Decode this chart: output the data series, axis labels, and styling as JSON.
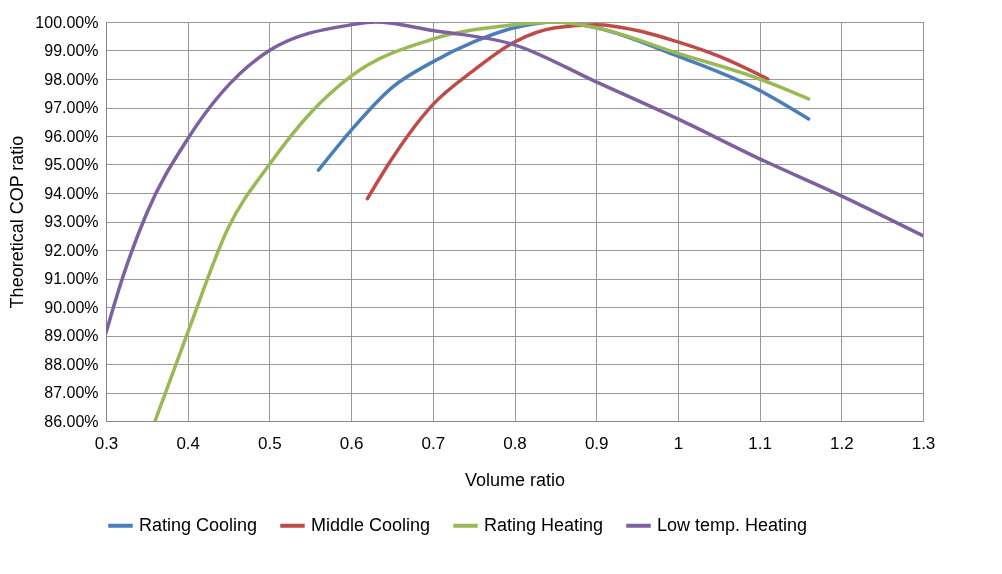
{
  "chart_data": {
    "type": "line",
    "xlabel": "Volume ratio",
    "ylabel": "Theoretical  COP ratio",
    "xlim": [
      0.3,
      1.3
    ],
    "xticks": [
      0.3,
      0.4,
      0.5,
      0.6,
      0.7,
      0.8,
      0.9,
      1,
      1.1,
      1.2,
      1.3
    ],
    "ylim": [
      86,
      100
    ],
    "yticks": [
      {
        "value": 86,
        "label": "86.00%"
      },
      {
        "value": 87,
        "label": "87.00%"
      },
      {
        "value": 88,
        "label": "88.00%"
      },
      {
        "value": 89,
        "label": "89.00%"
      },
      {
        "value": 90,
        "label": "90.00%"
      },
      {
        "value": 91,
        "label": "91.00%"
      },
      {
        "value": 92,
        "label": "92.00%"
      },
      {
        "value": 93,
        "label": "93.00%"
      },
      {
        "value": 94,
        "label": "94.00%"
      },
      {
        "value": 95,
        "label": "95.00%"
      },
      {
        "value": 96,
        "label": "96.00%"
      },
      {
        "value": 97,
        "label": "97.00%"
      },
      {
        "value": 98,
        "label": "98.00%"
      },
      {
        "value": 99,
        "label": "99.00%"
      },
      {
        "value": 100,
        "label": "100.00%"
      }
    ],
    "grid": true,
    "legend": "bottom",
    "marker": "none",
    "line_style": "solid",
    "series": [
      {
        "name": "Rating Cooling",
        "color": "#4a7ebb",
        "x": [
          0.56,
          0.6,
          0.65,
          0.7,
          0.75,
          0.8,
          0.85,
          0.9,
          1.0,
          1.1,
          1.16
        ],
        "values": [
          94.8,
          96.2,
          97.7,
          98.6,
          99.3,
          99.8,
          100,
          99.8,
          98.8,
          97.6,
          96.6
        ]
      },
      {
        "name": "Middle Cooling",
        "color": "#be4b48",
        "x": [
          0.62,
          0.65,
          0.7,
          0.75,
          0.8,
          0.85,
          0.9,
          0.95,
          1.0,
          1.05,
          1.11
        ],
        "values": [
          93.8,
          95.2,
          97.1,
          98.3,
          99.3,
          99.8,
          99.9,
          99.7,
          99.3,
          98.8,
          98.0
        ]
      },
      {
        "name": "Rating Heating",
        "color": "#98b954",
        "x": [
          0.36,
          0.4,
          0.45,
          0.5,
          0.55,
          0.6,
          0.7,
          0.8,
          0.85,
          0.9,
          1.0,
          1.1,
          1.16
        ],
        "values": [
          86.0,
          89.1,
          92.8,
          95.0,
          96.8,
          98.1,
          99.4,
          99.9,
          100,
          99.8,
          98.9,
          98.0,
          97.3
        ]
      },
      {
        "name": "Low temp. Heating",
        "color": "#7d60a0",
        "x": [
          0.3,
          0.32,
          0.35,
          0.4,
          0.5,
          0.6,
          0.63,
          0.7,
          0.8,
          0.9,
          1.0,
          1.1,
          1.2,
          1.3
        ],
        "values": [
          89.1,
          91.0,
          93.3,
          95.9,
          99.0,
          99.9,
          100,
          99.7,
          99.2,
          97.9,
          96.6,
          95.2,
          93.9,
          92.5
        ]
      }
    ]
  }
}
